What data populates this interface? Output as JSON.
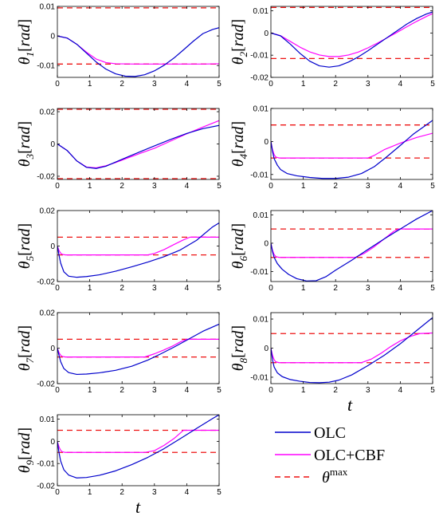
{
  "colors": {
    "olc": "#0000cc",
    "olc_cbf": "#ff00ff",
    "theta_max": "#ee1111",
    "axis": "#000000"
  },
  "legend": {
    "entries": [
      {
        "key": "olc",
        "label": "OLC"
      },
      {
        "key": "olc_cbf",
        "label": "OLC+CBF"
      },
      {
        "key": "theta_max",
        "label": "θ",
        "sup": "max"
      }
    ]
  },
  "xlabel": "t",
  "chart_data": [
    {
      "type": "line",
      "ylabel_sym": "θ",
      "ylabel_sub": "1",
      "ylabel_unit": "rad",
      "xlim": [
        0,
        5
      ],
      "ylim": [
        -0.014,
        0.01
      ],
      "xticks": [
        0,
        1,
        2,
        3,
        4,
        5
      ],
      "yticks": [
        -0.01,
        0,
        0.01
      ],
      "ytick_labels": [
        "-0.01",
        "0",
        "0.01"
      ],
      "theta_max": 0.0095,
      "series": [
        {
          "key": "olc",
          "x": [
            0,
            0.3,
            0.6,
            0.9,
            1.2,
            1.5,
            1.8,
            2.1,
            2.4,
            2.7,
            3.0,
            3.3,
            3.6,
            3.9,
            4.2,
            4.5,
            4.8,
            5.0
          ],
          "y": [
            0,
            -0.0007,
            -0.0028,
            -0.0058,
            -0.0088,
            -0.0112,
            -0.0128,
            -0.0136,
            -0.0137,
            -0.0131,
            -0.0118,
            -0.0099,
            -0.0075,
            -0.0047,
            -0.0018,
            0.0008,
            0.0022,
            0.0028
          ]
        },
        {
          "key": "olc_cbf",
          "x": [
            0,
            0.3,
            0.6,
            0.9,
            1.2,
            1.5,
            1.8,
            2.4,
            3.0,
            3.5,
            4.0,
            4.5,
            5.0
          ],
          "y": [
            0,
            -0.0007,
            -0.0028,
            -0.0055,
            -0.0078,
            -0.009,
            -0.0094,
            -0.0095,
            -0.0095,
            -0.0095,
            -0.0095,
            -0.0095,
            -0.0094
          ]
        }
      ]
    },
    {
      "type": "line",
      "ylabel_sym": "θ",
      "ylabel_sub": "2",
      "ylabel_unit": "rad",
      "xlim": [
        0,
        5
      ],
      "ylim": [
        -0.02,
        0.012
      ],
      "xticks": [
        0,
        1,
        2,
        3,
        4,
        5
      ],
      "yticks": [
        -0.02,
        -0.01,
        0,
        0.01
      ],
      "ytick_labels": [
        "-0.02",
        "-0.01",
        "0",
        "0.01"
      ],
      "theta_max": 0.0115,
      "series": [
        {
          "key": "olc",
          "x": [
            0,
            0.3,
            0.6,
            0.9,
            1.2,
            1.5,
            1.8,
            2.1,
            2.4,
            2.7,
            3.0,
            3.3,
            3.6,
            3.9,
            4.2,
            4.5,
            4.8,
            5.0
          ],
          "y": [
            0,
            -0.0013,
            -0.005,
            -0.0092,
            -0.0127,
            -0.0148,
            -0.0154,
            -0.0148,
            -0.0131,
            -0.0108,
            -0.008,
            -0.005,
            -0.002,
            0.001,
            0.004,
            0.0065,
            0.0085,
            0.0095
          ]
        },
        {
          "key": "olc_cbf",
          "x": [
            0,
            0.3,
            0.6,
            0.9,
            1.2,
            1.5,
            1.8,
            2.1,
            2.4,
            2.7,
            3.0,
            3.3,
            3.6,
            3.9,
            4.2,
            4.5,
            4.8,
            5.0
          ],
          "y": [
            0,
            -0.0012,
            -0.0038,
            -0.0064,
            -0.0085,
            -0.0099,
            -0.0106,
            -0.0106,
            -0.0099,
            -0.0086,
            -0.0067,
            -0.0045,
            -0.0021,
            0.0003,
            0.0028,
            0.0052,
            0.0074,
            0.0088
          ]
        }
      ]
    },
    {
      "type": "line",
      "ylabel_sym": "θ",
      "ylabel_sub": "3",
      "ylabel_unit": "rad",
      "xlim": [
        0,
        5
      ],
      "ylim": [
        -0.022,
        0.022
      ],
      "xticks": [
        0,
        1,
        2,
        3,
        4,
        5
      ],
      "yticks": [
        -0.02,
        0,
        0.02
      ],
      "ytick_labels": [
        "-0.02",
        "0",
        "0.02"
      ],
      "theta_max": 0.0215,
      "series": [
        {
          "key": "olc",
          "x": [
            0,
            0.3,
            0.6,
            0.9,
            1.2,
            1.5,
            1.8,
            2.2,
            2.6,
            3.0,
            3.5,
            4.0,
            4.5,
            5.0
          ],
          "y": [
            0,
            -0.004,
            -0.0105,
            -0.0145,
            -0.0152,
            -0.0138,
            -0.0112,
            -0.0078,
            -0.0045,
            -0.0012,
            0.0028,
            0.0065,
            0.0095,
            0.0115
          ]
        },
        {
          "key": "olc_cbf",
          "x": [
            0,
            0.3,
            0.6,
            0.9,
            1.2,
            1.5,
            1.8,
            2.2,
            2.6,
            3.0,
            3.5,
            4.0,
            4.5,
            5.0
          ],
          "y": [
            0,
            -0.004,
            -0.0105,
            -0.0143,
            -0.0148,
            -0.0135,
            -0.0115,
            -0.0085,
            -0.0055,
            -0.0027,
            0.0018,
            0.0063,
            0.0105,
            0.0145
          ]
        }
      ]
    },
    {
      "type": "line",
      "ylabel_sym": "θ",
      "ylabel_sub": "4",
      "ylabel_unit": "rad",
      "xlim": [
        0,
        5
      ],
      "ylim": [
        -0.0115,
        0.01
      ],
      "xticks": [
        0,
        1,
        2,
        3,
        4,
        5
      ],
      "yticks": [
        -0.01,
        0,
        0.01
      ],
      "ytick_labels": [
        "-0.01",
        "0",
        "0.01"
      ],
      "theta_max": 0.005,
      "series": [
        {
          "key": "olc",
          "x": [
            0,
            0.05,
            0.1,
            0.2,
            0.3,
            0.5,
            0.8,
            1.2,
            1.6,
            2.0,
            2.4,
            2.8,
            3.2,
            3.6,
            4.0,
            4.4,
            4.8,
            5.0
          ],
          "y": [
            0,
            -0.003,
            -0.0052,
            -0.0072,
            -0.0085,
            -0.0097,
            -0.0104,
            -0.0109,
            -0.0112,
            -0.0112,
            -0.0108,
            -0.0097,
            -0.0076,
            -0.0045,
            -0.0012,
            0.0022,
            0.005,
            0.0064
          ]
        },
        {
          "key": "olc_cbf",
          "x": [
            0,
            0.05,
            0.1,
            0.15,
            0.25,
            0.4,
            0.6,
            1.0,
            2.0,
            3.0,
            3.2,
            3.5,
            4.0,
            4.5,
            5.0
          ],
          "y": [
            0,
            -0.0025,
            -0.004,
            -0.0047,
            -0.005,
            -0.005,
            -0.005,
            -0.005,
            -0.005,
            -0.005,
            -0.0042,
            -0.0025,
            -0.0005,
            0.0012,
            0.0025
          ]
        }
      ]
    },
    {
      "type": "line",
      "ylabel_sym": "θ",
      "ylabel_sub": "5",
      "ylabel_unit": "rad",
      "xlim": [
        0,
        5
      ],
      "ylim": [
        -0.02,
        0.02
      ],
      "xticks": [
        0,
        1,
        2,
        3,
        4,
        5
      ],
      "yticks": [
        -0.02,
        0,
        0.02
      ],
      "ytick_labels": [
        "-0.02",
        "0",
        "0.02"
      ],
      "theta_max": 0.005,
      "series": [
        {
          "key": "olc",
          "x": [
            0,
            0.05,
            0.1,
            0.2,
            0.35,
            0.6,
            0.9,
            1.3,
            1.8,
            2.3,
            2.8,
            3.3,
            3.8,
            4.3,
            4.8,
            5.0
          ],
          "y": [
            0,
            -0.005,
            -0.0095,
            -0.0145,
            -0.017,
            -0.0176,
            -0.0172,
            -0.0162,
            -0.0142,
            -0.0117,
            -0.009,
            -0.006,
            -0.0022,
            0.0032,
            0.0108,
            0.013
          ]
        },
        {
          "key": "olc_cbf",
          "x": [
            0,
            0.05,
            0.1,
            0.15,
            0.25,
            0.4,
            0.6,
            1.0,
            2.0,
            2.8,
            3.0,
            3.3,
            3.6,
            3.9,
            4.1,
            4.5,
            5.0
          ],
          "y": [
            0,
            -0.0025,
            -0.004,
            -0.0047,
            -0.005,
            -0.005,
            -0.005,
            -0.005,
            -0.005,
            -0.005,
            -0.0042,
            -0.002,
            0.0008,
            0.0035,
            0.005,
            0.005,
            0.005
          ]
        }
      ]
    },
    {
      "type": "line",
      "ylabel_sym": "θ",
      "ylabel_sub": "6",
      "ylabel_unit": "rad",
      "xlim": [
        0,
        5
      ],
      "ylim": [
        -0.0135,
        0.0115
      ],
      "xticks": [
        0,
        1,
        2,
        3,
        4,
        5
      ],
      "yticks": [
        -0.01,
        0,
        0.01
      ],
      "ytick_labels": [
        "-0.01",
        "0",
        "0.01"
      ],
      "theta_max": 0.005,
      "series": [
        {
          "key": "olc",
          "x": [
            0,
            0.05,
            0.1,
            0.2,
            0.35,
            0.55,
            0.8,
            1.1,
            1.4,
            1.7,
            2.0,
            2.5,
            3.0,
            3.5,
            4.0,
            4.5,
            5.0
          ],
          "y": [
            0,
            -0.003,
            -0.005,
            -0.0072,
            -0.0092,
            -0.011,
            -0.0125,
            -0.0133,
            -0.0132,
            -0.0118,
            -0.0095,
            -0.006,
            -0.0022,
            0.0015,
            0.005,
            0.0085,
            0.0115
          ]
        },
        {
          "key": "olc_cbf",
          "x": [
            0,
            0.05,
            0.1,
            0.15,
            0.25,
            0.4,
            0.6,
            1.0,
            2.0,
            2.6,
            2.9,
            3.2,
            3.5,
            3.8,
            3.95,
            4.5,
            5.0
          ],
          "y": [
            0,
            -0.0025,
            -0.004,
            -0.0047,
            -0.005,
            -0.005,
            -0.005,
            -0.005,
            -0.005,
            -0.005,
            -0.0035,
            -0.0012,
            0.0015,
            0.0042,
            0.005,
            0.005,
            0.005
          ]
        }
      ]
    },
    {
      "type": "line",
      "ylabel_sym": "θ",
      "ylabel_sub": "7",
      "ylabel_unit": "rad",
      "xlim": [
        0,
        5
      ],
      "ylim": [
        -0.02,
        0.02
      ],
      "xticks": [
        0,
        1,
        2,
        3,
        4,
        5
      ],
      "yticks": [
        -0.02,
        0,
        0.02
      ],
      "ytick_labels": [
        "-0.02",
        "0",
        "0.02"
      ],
      "theta_max": 0.005,
      "series": [
        {
          "key": "olc",
          "x": [
            0,
            0.05,
            0.1,
            0.2,
            0.35,
            0.6,
            0.9,
            1.3,
            1.8,
            2.3,
            2.8,
            3.2,
            3.6,
            4.0,
            4.5,
            5.0
          ],
          "y": [
            0,
            -0.004,
            -0.0075,
            -0.0115,
            -0.0138,
            -0.0148,
            -0.0146,
            -0.0139,
            -0.0125,
            -0.0102,
            -0.0067,
            -0.0032,
            0.0005,
            0.0045,
            0.0095,
            0.0135
          ]
        },
        {
          "key": "olc_cbf",
          "x": [
            0,
            0.05,
            0.1,
            0.15,
            0.25,
            0.4,
            0.6,
            1.0,
            2.0,
            2.7,
            3.0,
            3.3,
            3.6,
            3.8,
            4.0,
            4.5,
            5.0
          ],
          "y": [
            0,
            -0.0025,
            -0.004,
            -0.0047,
            -0.005,
            -0.005,
            -0.005,
            -0.005,
            -0.005,
            -0.005,
            -0.0032,
            -0.001,
            0.0015,
            0.0035,
            0.005,
            0.005,
            0.005
          ]
        }
      ]
    },
    {
      "type": "line",
      "ylabel_sym": "θ",
      "ylabel_sub": "8",
      "ylabel_unit": "rad",
      "xlim": [
        0,
        5
      ],
      "ylim": [
        -0.0122,
        0.0122
      ],
      "xticks": [
        0,
        1,
        2,
        3,
        4,
        5
      ],
      "yticks": [
        -0.01,
        0,
        0.01
      ],
      "ytick_labels": [
        "-0.01",
        "0",
        "0.01"
      ],
      "theta_max": 0.005,
      "series": [
        {
          "key": "olc",
          "x": [
            0,
            0.05,
            0.1,
            0.2,
            0.35,
            0.6,
            0.9,
            1.2,
            1.5,
            1.8,
            2.1,
            2.5,
            3.0,
            3.5,
            4.0,
            4.5,
            5.0
          ],
          "y": [
            0,
            -0.004,
            -0.0065,
            -0.0085,
            -0.0098,
            -0.0108,
            -0.0114,
            -0.0118,
            -0.0119,
            -0.0117,
            -0.011,
            -0.0092,
            -0.006,
            -0.0025,
            0.0015,
            0.006,
            0.0105
          ]
        },
        {
          "key": "olc_cbf",
          "x": [
            0,
            0.05,
            0.1,
            0.15,
            0.25,
            0.4,
            0.6,
            1.0,
            2.0,
            2.8,
            3.1,
            3.4,
            3.7,
            4.0,
            4.3,
            4.6,
            5.0
          ],
          "y": [
            0,
            -0.0025,
            -0.004,
            -0.0047,
            -0.005,
            -0.005,
            -0.005,
            -0.005,
            -0.005,
            -0.005,
            -0.0038,
            -0.0018,
            0.0005,
            0.0025,
            0.004,
            0.005,
            0.0052
          ]
        }
      ]
    },
    {
      "type": "line",
      "ylabel_sym": "θ",
      "ylabel_sub": "9",
      "ylabel_unit": "rad",
      "xlim": [
        0,
        5
      ],
      "ylim": [
        -0.02,
        0.012
      ],
      "xticks": [
        0,
        1,
        2,
        3,
        4,
        5
      ],
      "yticks": [
        -0.02,
        -0.01,
        0,
        0.01
      ],
      "ytick_labels": [
        "-0.02",
        "-0.01",
        "0",
        "0.01"
      ],
      "theta_max": 0.005,
      "series": [
        {
          "key": "olc",
          "x": [
            0,
            0.05,
            0.1,
            0.2,
            0.35,
            0.6,
            0.9,
            1.3,
            1.8,
            2.3,
            2.8,
            3.3,
            3.8,
            4.3,
            4.8,
            5.0
          ],
          "y": [
            0,
            -0.005,
            -0.0088,
            -0.0128,
            -0.0152,
            -0.0165,
            -0.0163,
            -0.0153,
            -0.0133,
            -0.0105,
            -0.0072,
            -0.0033,
            0.0012,
            0.0058,
            0.0103,
            0.012
          ]
        },
        {
          "key": "olc_cbf",
          "x": [
            0,
            0.05,
            0.1,
            0.15,
            0.25,
            0.4,
            0.6,
            1.0,
            2.0,
            2.7,
            3.0,
            3.3,
            3.6,
            3.9,
            4.5,
            5.0
          ],
          "y": [
            0,
            -0.0025,
            -0.004,
            -0.0047,
            -0.005,
            -0.005,
            -0.005,
            -0.005,
            -0.005,
            -0.005,
            -0.0042,
            -0.0018,
            0.0012,
            0.005,
            0.005,
            0.005
          ]
        }
      ]
    }
  ]
}
